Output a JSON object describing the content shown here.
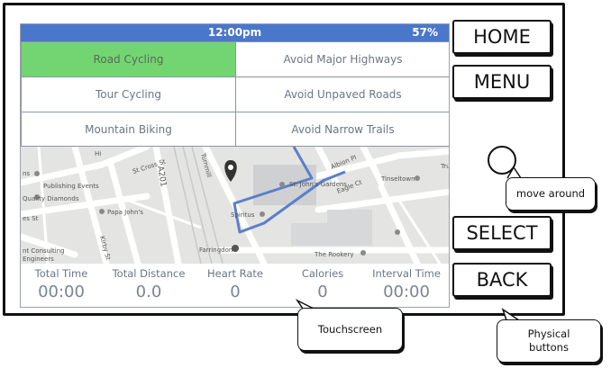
{
  "status_bar": {
    "time": "12:00pm",
    "battery": "57%"
  },
  "options": [
    {
      "label": "Road Cycling",
      "active": true
    },
    {
      "label": "Avoid Major Highways",
      "active": false
    },
    {
      "label": "Tour Cycling",
      "active": false
    },
    {
      "label": "Avoid Unpaved Roads",
      "active": false
    },
    {
      "label": "Mountain Biking",
      "active": false
    },
    {
      "label": "Avoid Narrow Trails",
      "active": false
    }
  ],
  "map": {
    "labels": {
      "publishing_events": "Publishing Events",
      "quality_diamonds": "Quality Diamonds",
      "papa_johns": "Papa John's",
      "st_cross_st": "St Cross St",
      "a201": "A201",
      "st_johns_gardens": "St. John's Gardens",
      "albion_pl": "Albion Pl",
      "tinseltown": "Tinseltown",
      "eagle_ct": "Eagle Ct",
      "spiritus": "Spiritus",
      "farringdon": "Farringdon",
      "the_rookery": "The Rookery",
      "consulting_engineers": "nt Consulting\nEngineers",
      "kirby_st": "Kirby St",
      "turnmill": "Turnmill",
      "es_st": "es St",
      "tru": "Tru",
      "hi": "Hi",
      "ns": "ns"
    }
  },
  "stats": [
    {
      "label": "Total Time",
      "value": "00:00"
    },
    {
      "label": "Total Distance",
      "value": "0.0"
    },
    {
      "label": "Heart Rate",
      "value": "0"
    },
    {
      "label": "Calories",
      "value": "0"
    },
    {
      "label": "Interval Time",
      "value": "00:00"
    }
  ],
  "buttons": {
    "home": "HOME",
    "menu": "MENU",
    "select": "SELECT",
    "back": "BACK"
  },
  "callouts": {
    "move_around": "move around",
    "touchscreen": "Touchscreen",
    "physical_buttons_1": "Physical",
    "physical_buttons_2": "buttons"
  }
}
